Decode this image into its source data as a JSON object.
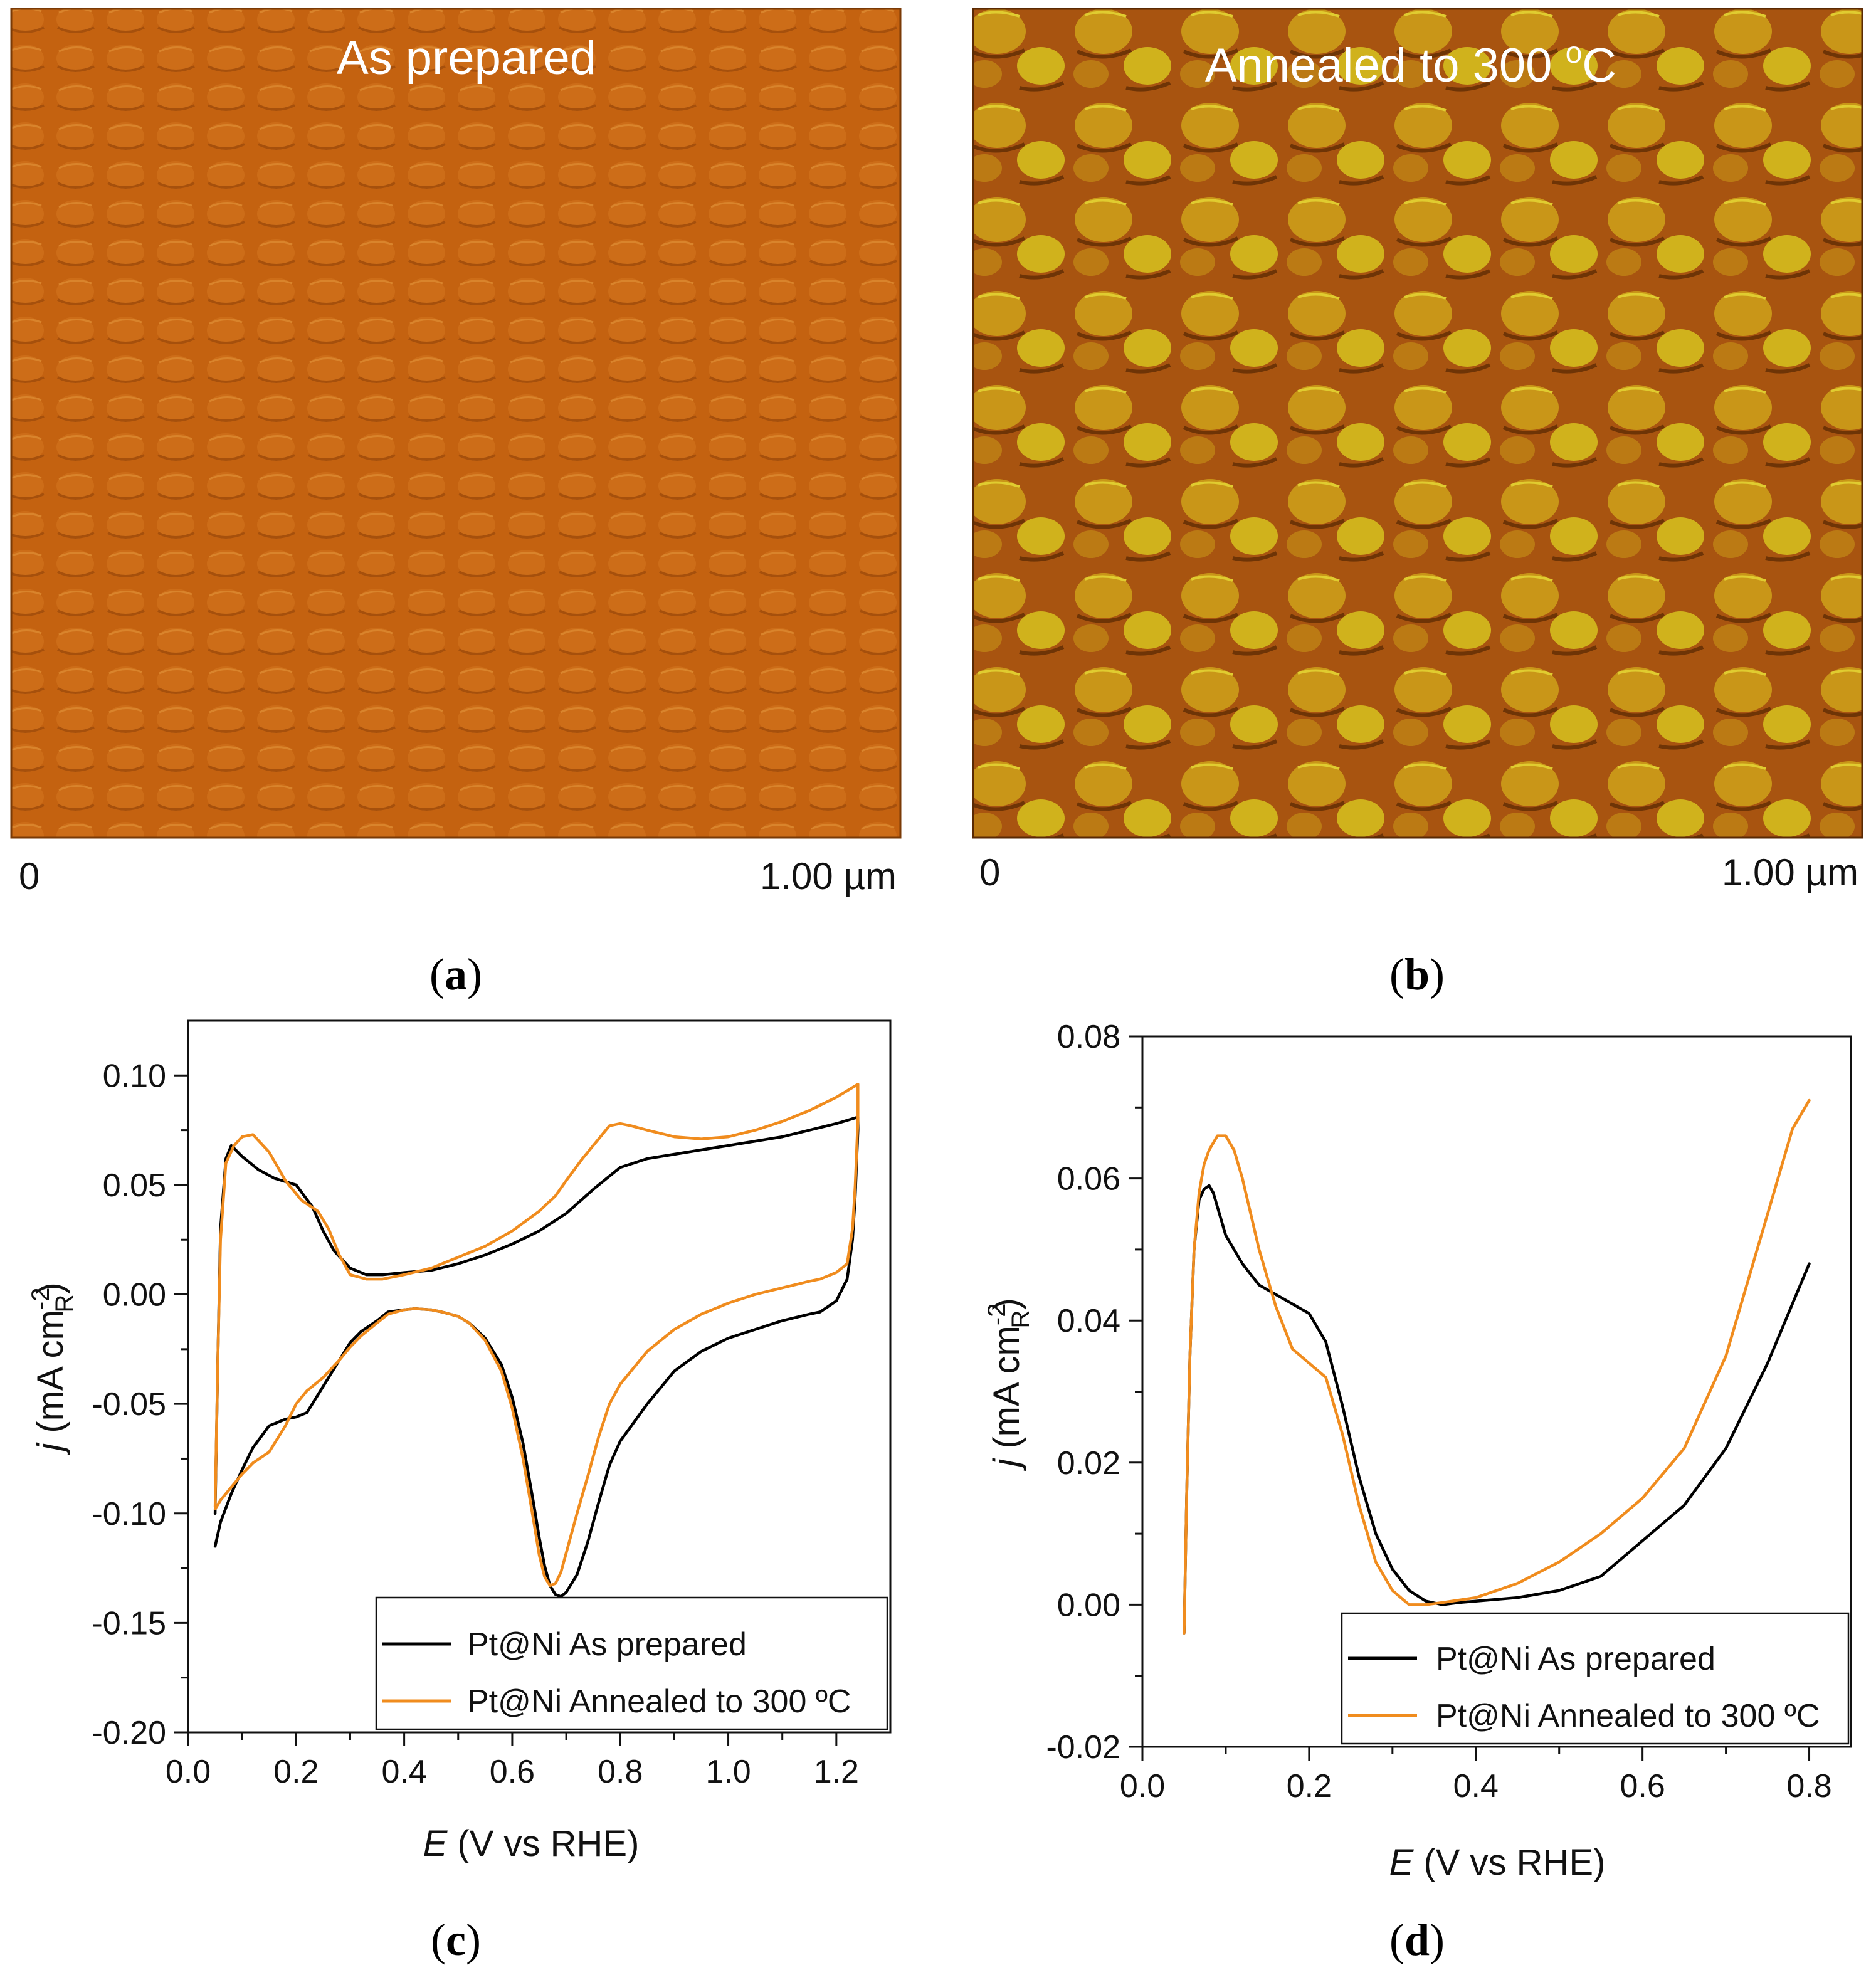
{
  "afm_panels": {
    "a": {
      "title": "As prepared",
      "scale_start": "0",
      "scale_end": "1.00 µm",
      "label_open": "(",
      "label_letter": "a",
      "label_close": ")",
      "colors": {
        "base": "#c66410",
        "light": "#d57b24",
        "dark": "#a24c0a"
      }
    },
    "b": {
      "title_main": "Annealed to 300 ",
      "title_degree": "o",
      "title_unit": "C",
      "scale_start": "0",
      "scale_end": "1.00 µm",
      "label_open": "(",
      "label_letter": "b",
      "label_close": ")",
      "colors": {
        "base": "#b86010",
        "light": "#d6c020",
        "dark": "#7a3a06"
      }
    }
  },
  "chart_data": [
    {
      "type": "line",
      "panel": "c",
      "label_open": "(",
      "label_letter": "c",
      "label_close": ")",
      "xlabel_var": "E",
      "xlabel_rest": " (V vs RHE)",
      "ylabel_var": "j",
      "ylabel_rest": " (mA cm",
      "ylabel_sup": "-2",
      "ylabel_sub": "R",
      "ylabel_close": ")",
      "xlim": [
        0.0,
        1.3
      ],
      "ylim": [
        -0.2,
        0.125
      ],
      "xticks": [
        0.0,
        0.2,
        0.4,
        0.6,
        0.8,
        1.0,
        1.2
      ],
      "xtick_labels": [
        "0.0",
        "0.2",
        "0.4",
        "0.6",
        "0.8",
        "1.0",
        "1.2"
      ],
      "yticks": [
        -0.2,
        -0.15,
        -0.1,
        -0.05,
        0.0,
        0.05,
        0.1
      ],
      "ytick_labels": [
        "-0.20",
        "-0.15",
        "-0.10",
        "-0.05",
        "0.00",
        "0.05",
        "0.10"
      ],
      "legend_position": "bottom-right",
      "series": [
        {
          "name": "Pt@Ni As prepared",
          "color": "#000000",
          "x": [
            0.05,
            0.055,
            0.06,
            0.07,
            0.08,
            0.1,
            0.13,
            0.16,
            0.2,
            0.23,
            0.25,
            0.27,
            0.3,
            0.33,
            0.36,
            0.4,
            0.45,
            0.5,
            0.55,
            0.6,
            0.65,
            0.7,
            0.75,
            0.8,
            0.85,
            0.9,
            0.95,
            1.0,
            1.05,
            1.1,
            1.15,
            1.2,
            1.24,
            1.24,
            1.235,
            1.23,
            1.22,
            1.2,
            1.17,
            1.15,
            1.1,
            1.05,
            1.0,
            0.95,
            0.9,
            0.85,
            0.8,
            0.78,
            0.76,
            0.74,
            0.72,
            0.7,
            0.69,
            0.68,
            0.67,
            0.66,
            0.65,
            0.64,
            0.62,
            0.6,
            0.58,
            0.55,
            0.52,
            0.5,
            0.47,
            0.45,
            0.42,
            0.4,
            0.37,
            0.35,
            0.32,
            0.3,
            0.28,
            0.25,
            0.22,
            0.2,
            0.18,
            0.15,
            0.12,
            0.1,
            0.08,
            0.06,
            0.05
          ],
          "y": [
            -0.1,
            -0.03,
            0.03,
            0.062,
            0.068,
            0.063,
            0.057,
            0.053,
            0.05,
            0.04,
            0.029,
            0.02,
            0.012,
            0.009,
            0.009,
            0.01,
            0.011,
            0.014,
            0.018,
            0.023,
            0.029,
            0.037,
            0.048,
            0.058,
            0.062,
            0.064,
            0.066,
            0.068,
            0.07,
            0.072,
            0.075,
            0.078,
            0.081,
            0.075,
            0.045,
            0.025,
            0.007,
            -0.003,
            -0.008,
            -0.009,
            -0.012,
            -0.016,
            -0.02,
            -0.026,
            -0.035,
            -0.05,
            -0.067,
            -0.078,
            -0.095,
            -0.113,
            -0.128,
            -0.136,
            -0.138,
            -0.137,
            -0.133,
            -0.124,
            -0.111,
            -0.096,
            -0.068,
            -0.047,
            -0.032,
            -0.02,
            -0.013,
            -0.01,
            -0.008,
            -0.007,
            -0.0065,
            -0.007,
            -0.008,
            -0.012,
            -0.017,
            -0.022,
            -0.03,
            -0.042,
            -0.054,
            -0.056,
            -0.057,
            -0.06,
            -0.07,
            -0.08,
            -0.091,
            -0.104,
            -0.115
          ]
        },
        {
          "name": "Pt@Ni Annealed to 300 ºC",
          "color": "#f08c1e",
          "x": [
            0.05,
            0.055,
            0.06,
            0.07,
            0.085,
            0.1,
            0.12,
            0.15,
            0.18,
            0.21,
            0.24,
            0.26,
            0.28,
            0.3,
            0.33,
            0.36,
            0.4,
            0.45,
            0.5,
            0.55,
            0.6,
            0.65,
            0.68,
            0.7,
            0.73,
            0.76,
            0.78,
            0.8,
            0.82,
            0.85,
            0.9,
            0.95,
            1.0,
            1.05,
            1.1,
            1.15,
            1.2,
            1.24,
            1.24,
            1.235,
            1.23,
            1.22,
            1.2,
            1.17,
            1.15,
            1.1,
            1.05,
            1.0,
            0.95,
            0.9,
            0.85,
            0.8,
            0.78,
            0.76,
            0.74,
            0.72,
            0.7,
            0.69,
            0.68,
            0.67,
            0.66,
            0.65,
            0.64,
            0.62,
            0.6,
            0.58,
            0.55,
            0.52,
            0.5,
            0.47,
            0.45,
            0.42,
            0.4,
            0.37,
            0.35,
            0.32,
            0.3,
            0.28,
            0.25,
            0.22,
            0.2,
            0.18,
            0.15,
            0.12,
            0.1,
            0.08,
            0.06,
            0.05
          ],
          "y": [
            -0.097,
            -0.03,
            0.025,
            0.06,
            0.068,
            0.072,
            0.073,
            0.065,
            0.052,
            0.043,
            0.038,
            0.03,
            0.018,
            0.009,
            0.007,
            0.007,
            0.009,
            0.012,
            0.017,
            0.022,
            0.029,
            0.038,
            0.045,
            0.052,
            0.062,
            0.071,
            0.077,
            0.078,
            0.077,
            0.075,
            0.072,
            0.071,
            0.072,
            0.075,
            0.079,
            0.084,
            0.09,
            0.096,
            0.08,
            0.05,
            0.03,
            0.014,
            0.01,
            0.007,
            0.006,
            0.003,
            0.0,
            -0.004,
            -0.009,
            -0.016,
            -0.026,
            -0.041,
            -0.05,
            -0.065,
            -0.083,
            -0.1,
            -0.118,
            -0.127,
            -0.132,
            -0.133,
            -0.129,
            -0.119,
            -0.104,
            -0.075,
            -0.052,
            -0.035,
            -0.021,
            -0.013,
            -0.01,
            -0.008,
            -0.007,
            -0.0065,
            -0.007,
            -0.009,
            -0.013,
            -0.019,
            -0.024,
            -0.03,
            -0.038,
            -0.044,
            -0.05,
            -0.06,
            -0.072,
            -0.077,
            -0.082,
            -0.088,
            -0.094,
            -0.098
          ]
        }
      ]
    },
    {
      "type": "line",
      "panel": "d",
      "label_open": "(",
      "label_letter": "d",
      "label_close": ")",
      "xlabel_var": "E",
      "xlabel_rest": " (V vs RHE)",
      "ylabel_var": "j",
      "ylabel_rest": " (mA cm",
      "ylabel_sup": "-2",
      "ylabel_sub": "R",
      "ylabel_close": ")",
      "xlim": [
        0.0,
        0.85
      ],
      "ylim": [
        -0.02,
        0.08
      ],
      "xticks": [
        0.0,
        0.2,
        0.4,
        0.6,
        0.8
      ],
      "xtick_labels": [
        "0.0",
        "0.2",
        "0.4",
        "0.6",
        "0.8"
      ],
      "yticks": [
        -0.02,
        0.0,
        0.02,
        0.04,
        0.06,
        0.08
      ],
      "ytick_labels": [
        "-0.02",
        "0.00",
        "0.02",
        "0.04",
        "0.06",
        "0.08"
      ],
      "legend_position": "bottom-right",
      "series": [
        {
          "name": "Pt@Ni As prepared",
          "color": "#000000",
          "x": [
            0.05,
            0.053,
            0.057,
            0.062,
            0.068,
            0.074,
            0.08,
            0.085,
            0.09,
            0.1,
            0.12,
            0.14,
            0.17,
            0.2,
            0.22,
            0.24,
            0.26,
            0.28,
            0.3,
            0.32,
            0.34,
            0.36,
            0.38,
            0.4,
            0.45,
            0.5,
            0.55,
            0.6,
            0.65,
            0.7,
            0.75,
            0.8
          ],
          "y": [
            -0.004,
            0.015,
            0.035,
            0.05,
            0.057,
            0.0585,
            0.059,
            0.058,
            0.056,
            0.052,
            0.048,
            0.045,
            0.043,
            0.041,
            0.037,
            0.028,
            0.018,
            0.01,
            0.005,
            0.002,
            0.0005,
            0.0,
            0.0003,
            0.0005,
            0.001,
            0.002,
            0.004,
            0.009,
            0.014,
            0.022,
            0.034,
            0.048
          ]
        },
        {
          "name": "Pt@Ni Annealed to 300 ºC",
          "color": "#f08c1e",
          "x": [
            0.05,
            0.053,
            0.057,
            0.062,
            0.068,
            0.074,
            0.08,
            0.09,
            0.1,
            0.11,
            0.12,
            0.14,
            0.16,
            0.18,
            0.2,
            0.22,
            0.24,
            0.26,
            0.28,
            0.3,
            0.32,
            0.34,
            0.36,
            0.4,
            0.45,
            0.5,
            0.55,
            0.6,
            0.65,
            0.7,
            0.75,
            0.78,
            0.8
          ],
          "y": [
            -0.004,
            0.015,
            0.035,
            0.05,
            0.058,
            0.062,
            0.064,
            0.066,
            0.066,
            0.064,
            0.06,
            0.05,
            0.042,
            0.036,
            0.034,
            0.032,
            0.024,
            0.014,
            0.006,
            0.002,
            0.0,
            0.0,
            0.0003,
            0.001,
            0.003,
            0.006,
            0.01,
            0.015,
            0.022,
            0.035,
            0.055,
            0.067,
            0.071
          ]
        }
      ]
    }
  ]
}
